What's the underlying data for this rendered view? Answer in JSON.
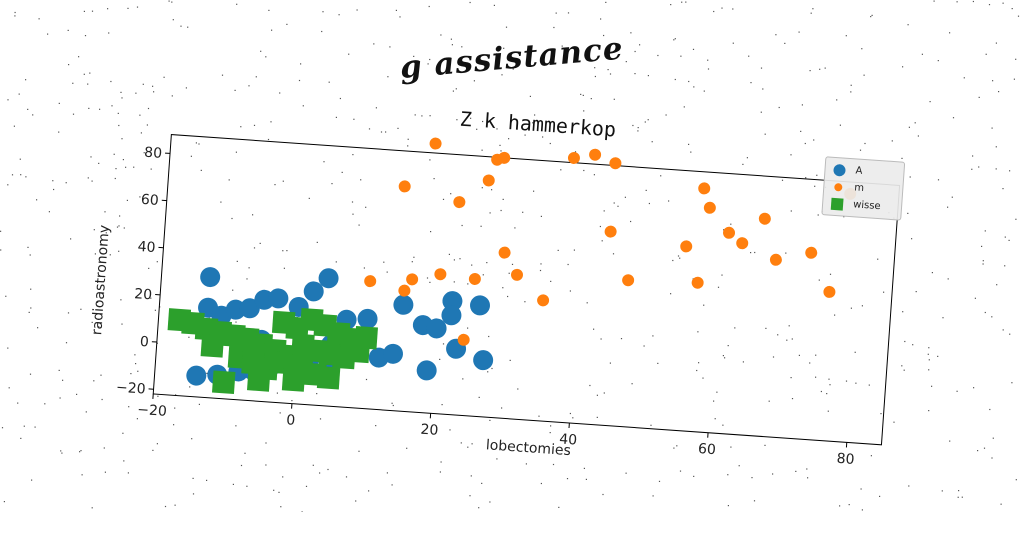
{
  "suptitle": "g assistance",
  "chart_data": {
    "type": "scatter",
    "title": "Z k hammerkop",
    "xlabel": "lobectomies",
    "ylabel": "radioastronomy",
    "xlim": [
      -20,
      85
    ],
    "ylim": [
      -22,
      88
    ],
    "xticks": [
      -20,
      0,
      20,
      40,
      60,
      80
    ],
    "yticks": [
      -20,
      0,
      20,
      40,
      60,
      80
    ],
    "grid": false,
    "legend_position": "top-right",
    "series": [
      {
        "name": "A",
        "marker": "circle-large",
        "color": "#1f77b4",
        "points": [
          [
            -13,
            29
          ],
          [
            -13,
            16
          ],
          [
            -11,
            13
          ],
          [
            -9,
            16
          ],
          [
            -7,
            17
          ],
          [
            -5,
            21
          ],
          [
            -3,
            22
          ],
          [
            0,
            19
          ],
          [
            2,
            26
          ],
          [
            4,
            32
          ],
          [
            7,
            15
          ],
          [
            10,
            16
          ],
          [
            -14,
            -13
          ],
          [
            -11,
            -12
          ],
          [
            -8,
            -10
          ],
          [
            -6,
            -9
          ],
          [
            -3,
            -6
          ],
          [
            0,
            -4
          ],
          [
            2,
            -3
          ],
          [
            5,
            -6
          ],
          [
            8,
            2
          ],
          [
            9,
            5
          ],
          [
            12,
            0
          ],
          [
            14,
            2
          ],
          [
            15,
            23
          ],
          [
            18,
            15
          ],
          [
            20,
            14
          ],
          [
            22,
            26
          ],
          [
            22,
            20
          ],
          [
            23,
            6
          ],
          [
            26,
            25
          ],
          [
            27,
            2
          ],
          [
            19,
            -4
          ],
          [
            -5,
            4
          ],
          [
            5,
            4
          ]
        ]
      },
      {
        "name": "m",
        "marker": "circle-small",
        "color": "#ff7f0e",
        "points": [
          [
            10,
            32
          ],
          [
            14,
            73
          ],
          [
            15,
            29
          ],
          [
            16,
            34
          ],
          [
            18,
            92
          ],
          [
            20,
            37
          ],
          [
            22,
            68
          ],
          [
            25,
            36
          ],
          [
            26,
            78
          ],
          [
            27,
            87
          ],
          [
            28,
            88
          ],
          [
            29,
            48
          ],
          [
            31,
            39
          ],
          [
            35,
            29
          ],
          [
            38,
            90
          ],
          [
            41,
            92
          ],
          [
            44,
            89
          ],
          [
            44,
            60
          ],
          [
            47,
            40
          ],
          [
            55,
            56
          ],
          [
            57,
            41
          ],
          [
            57,
            81
          ],
          [
            58,
            73
          ],
          [
            61,
            63
          ],
          [
            63,
            59
          ],
          [
            66,
            70
          ],
          [
            68,
            53
          ],
          [
            73,
            57
          ],
          [
            76,
            41
          ],
          [
            78,
            83
          ],
          [
            24,
            10
          ]
        ]
      },
      {
        "name": "wisse",
        "marker": "square",
        "color": "#2ca02c",
        "points": [
          [
            -17,
            10
          ],
          [
            -15,
            9
          ],
          [
            -13,
            7
          ],
          [
            -11,
            6
          ],
          [
            -9,
            5
          ],
          [
            -7,
            4
          ],
          [
            -5,
            2
          ],
          [
            -3,
            0
          ],
          [
            -1,
            -2
          ],
          [
            1,
            3
          ],
          [
            3,
            1
          ],
          [
            5,
            0
          ],
          [
            7,
            -1
          ],
          [
            9,
            2
          ],
          [
            -2,
            12
          ],
          [
            0,
            10
          ],
          [
            2,
            14
          ],
          [
            4,
            12
          ],
          [
            6,
            9
          ],
          [
            8,
            7
          ],
          [
            10,
            8
          ],
          [
            -8,
            -4
          ],
          [
            -6,
            -6
          ],
          [
            -4,
            -8
          ],
          [
            -2,
            -5
          ],
          [
            1,
            -6
          ],
          [
            3,
            -9
          ],
          [
            5,
            -10
          ],
          [
            -10,
            -15
          ],
          [
            -5,
            -13
          ],
          [
            0,
            -12
          ],
          [
            -12,
            0
          ],
          [
            -6,
            -2
          ]
        ]
      }
    ]
  }
}
